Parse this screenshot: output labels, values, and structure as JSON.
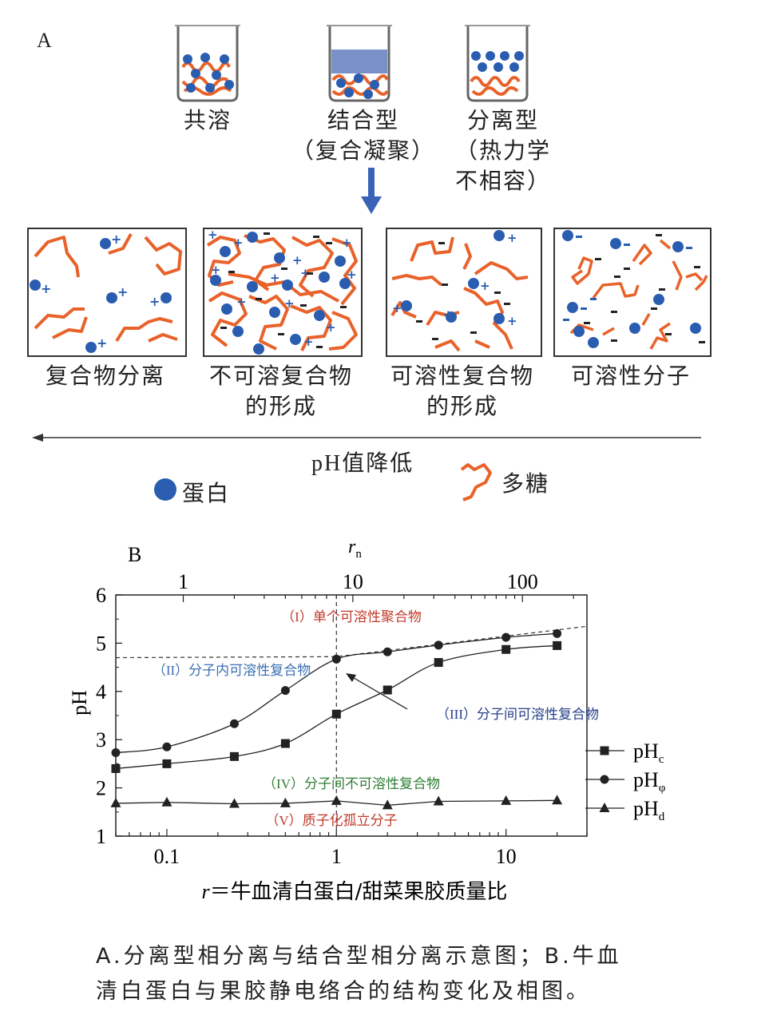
{
  "panel_a": {
    "letter": "A",
    "beakers": [
      {
        "label_lines": [
          "共溶"
        ]
      },
      {
        "label_lines": [
          "结合型",
          "（复合凝聚）"
        ]
      },
      {
        "label_lines": [
          "分离型",
          "（热力学",
          "不相容）"
        ]
      }
    ],
    "boxes": [
      {
        "label_lines": [
          "复合物分离"
        ]
      },
      {
        "label_lines": [
          "不可溶复合物",
          "的形成"
        ]
      },
      {
        "label_lines": [
          "可溶性复合物",
          "的形成"
        ]
      },
      {
        "label_lines": [
          "可溶性分子"
        ]
      }
    ],
    "ph_arrow_label": "pH值降低",
    "legend": {
      "protein": "蛋白",
      "polysaccharide": "多糖"
    },
    "colors": {
      "protein": "#2a5db0",
      "polysaccharide": "#e8622a",
      "arrow": "#3a63b8"
    }
  },
  "panel_b": {
    "letter": "B",
    "chart_data": {
      "type": "line",
      "xlabel": "r＝牛血清白蛋白/甜菜果胶质量比",
      "top_axis_label": "rn",
      "ylabel": "pH",
      "xscale": "log",
      "xlim": [
        0.05,
        30
      ],
      "ylim": [
        1,
        6
      ],
      "x_ticks": [
        "0.1",
        "1",
        "10"
      ],
      "top_ticks": [
        "1",
        "10",
        "100"
      ],
      "y_ticks": [
        "1",
        "2",
        "3",
        "4",
        "5",
        "6"
      ],
      "legend_position": "right",
      "series": [
        {
          "name": "pHc",
          "marker": "square",
          "x": [
            0.05,
            0.1,
            0.25,
            0.5,
            1,
            2,
            4,
            10,
            20
          ],
          "y": [
            2.4,
            2.5,
            2.65,
            2.92,
            3.53,
            4.03,
            4.6,
            4.87,
            4.95
          ]
        },
        {
          "name": "pHφ",
          "marker": "circle",
          "x": [
            0.05,
            0.1,
            0.25,
            0.5,
            1,
            2,
            4,
            10,
            20
          ],
          "y": [
            2.73,
            2.85,
            3.33,
            4.02,
            4.67,
            4.82,
            4.96,
            5.12,
            5.2
          ]
        },
        {
          "name": "pHd",
          "marker": "triangle",
          "x": [
            0.05,
            0.1,
            0.25,
            0.5,
            1,
            2,
            4,
            10,
            20
          ],
          "y": [
            1.68,
            1.7,
            1.67,
            1.68,
            1.73,
            1.64,
            1.72,
            1.73,
            1.74
          ]
        }
      ],
      "dashed_boundary": {
        "x": [
          0.05,
          1,
          30
        ],
        "y": [
          4.7,
          4.72,
          5.35
        ]
      },
      "vertical_dashed_x": 1,
      "regions": [
        {
          "text": "（I）单个可溶性聚合物",
          "color": "#c0392b"
        },
        {
          "text": "（II）分子内可溶性复合物",
          "color": "#3b6fb5"
        },
        {
          "text": "（III）分子间可溶性复合物",
          "color": "#27408b"
        },
        {
          "text": "（IV）分子间不可溶性复合物",
          "color": "#2e7d32"
        },
        {
          "text": "（V）质子化孤立分子",
          "color": "#c0392b"
        }
      ]
    }
  },
  "caption_lines": [
    "A.分离型相分离与结合型相分离示意图；B.牛血",
    "清白蛋白与果胶静电络合的结构变化及相图。"
  ]
}
